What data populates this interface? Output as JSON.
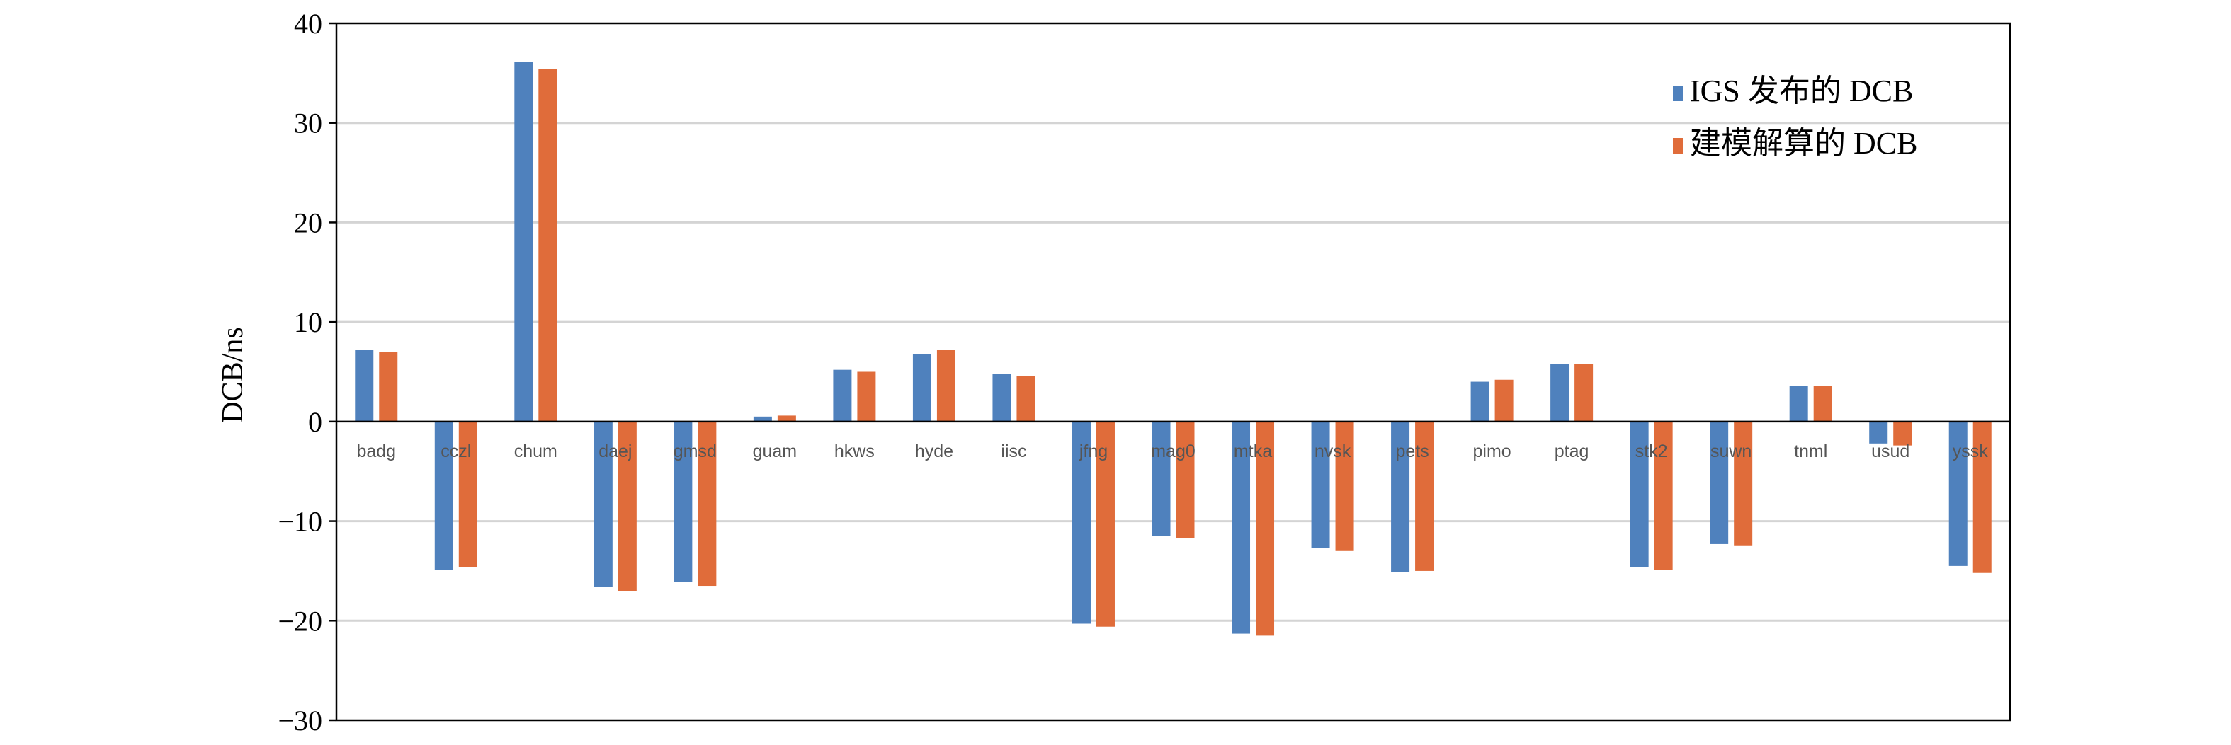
{
  "chart_data": {
    "type": "bar",
    "title": "",
    "xlabel": "",
    "ylabel": "DCB/ns",
    "ylim": [
      -30,
      40
    ],
    "yticks": [
      40,
      30,
      20,
      10,
      0,
      -10,
      -20,
      -30
    ],
    "ytick_labels": [
      "40",
      "30",
      "20",
      "10",
      "0",
      "−10",
      "−20",
      "−30"
    ],
    "grid": true,
    "legend_position": "top-right",
    "categories": [
      "badg",
      "cczl",
      "chum",
      "daej",
      "gmsd",
      "guam",
      "hkws",
      "hyde",
      "iisc",
      "jfng",
      "mag0",
      "mtka",
      "nvsk",
      "pets",
      "pimo",
      "ptag",
      "stk2",
      "suwn",
      "tnml",
      "usud",
      "yssk"
    ],
    "series": [
      {
        "name": "IGS 发布的 DCB",
        "color": "#4f81bd",
        "values": [
          7.2,
          -14.9,
          36.1,
          -16.6,
          -16.1,
          0.5,
          5.2,
          6.8,
          4.8,
          -20.3,
          -11.5,
          -21.3,
          -12.7,
          -15.1,
          4.0,
          5.8,
          -14.6,
          -12.3,
          3.6,
          -2.2,
          -14.5
        ]
      },
      {
        "name": "建模解算的 DCB",
        "color": "#e06c3a",
        "values": [
          7.0,
          -14.6,
          35.4,
          -17.0,
          -16.5,
          0.6,
          5.0,
          7.2,
          4.6,
          -20.6,
          -11.7,
          -21.5,
          -13.0,
          -15.0,
          4.2,
          5.8,
          -14.9,
          -12.5,
          3.6,
          -2.4,
          -15.2
        ]
      }
    ]
  }
}
